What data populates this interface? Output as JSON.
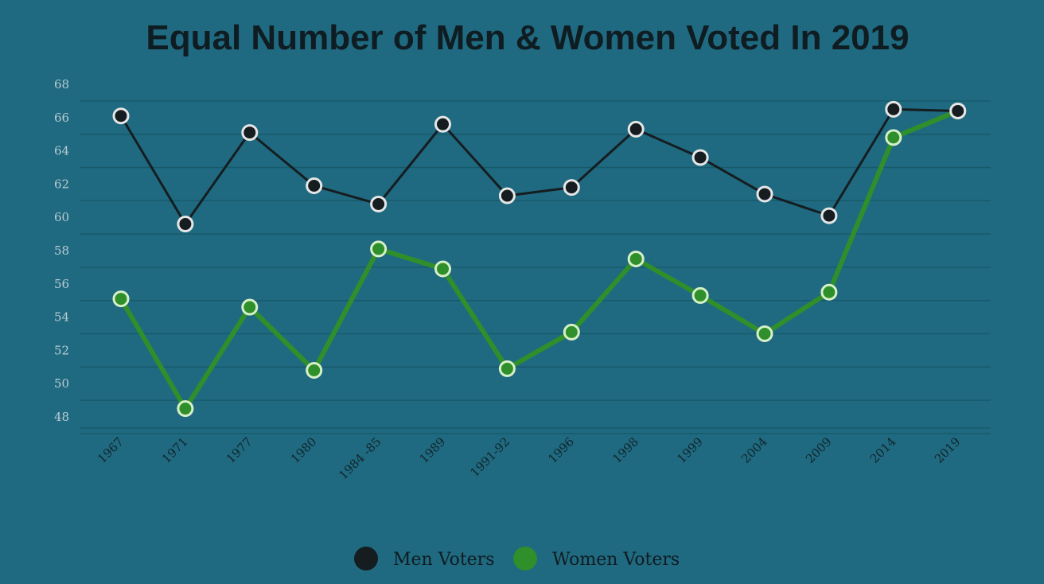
{
  "chart_data": {
    "type": "line",
    "title": "Equal Number of Men & Women Voted In 2019",
    "xlabel": "",
    "ylabel": "",
    "ylim": [
      47,
      68
    ],
    "yticks": [
      48,
      50,
      52,
      54,
      56,
      58,
      60,
      62,
      64,
      66,
      68
    ],
    "categories": [
      "1967",
      "1971",
      "1977",
      "1980",
      "1984 -85",
      "1989",
      "1991-92",
      "1996",
      "1998",
      "1999",
      "2004",
      "2009",
      "2014",
      "2019"
    ],
    "series": [
      {
        "name": "Men Voters",
        "color": "#151d21",
        "values": [
          66.1,
          59.6,
          65.1,
          61.9,
          60.8,
          65.6,
          61.3,
          61.8,
          65.3,
          63.6,
          61.4,
          60.1,
          66.5,
          66.4
        ]
      },
      {
        "name": "Women Voters",
        "color": "#2f8f2b",
        "values": [
          55.1,
          48.5,
          54.6,
          50.8,
          58.1,
          56.9,
          50.9,
          53.1,
          57.5,
          55.3,
          53.0,
          55.5,
          64.8,
          66.4
        ]
      }
    ],
    "grid": true,
    "legend_position": "bottom"
  }
}
